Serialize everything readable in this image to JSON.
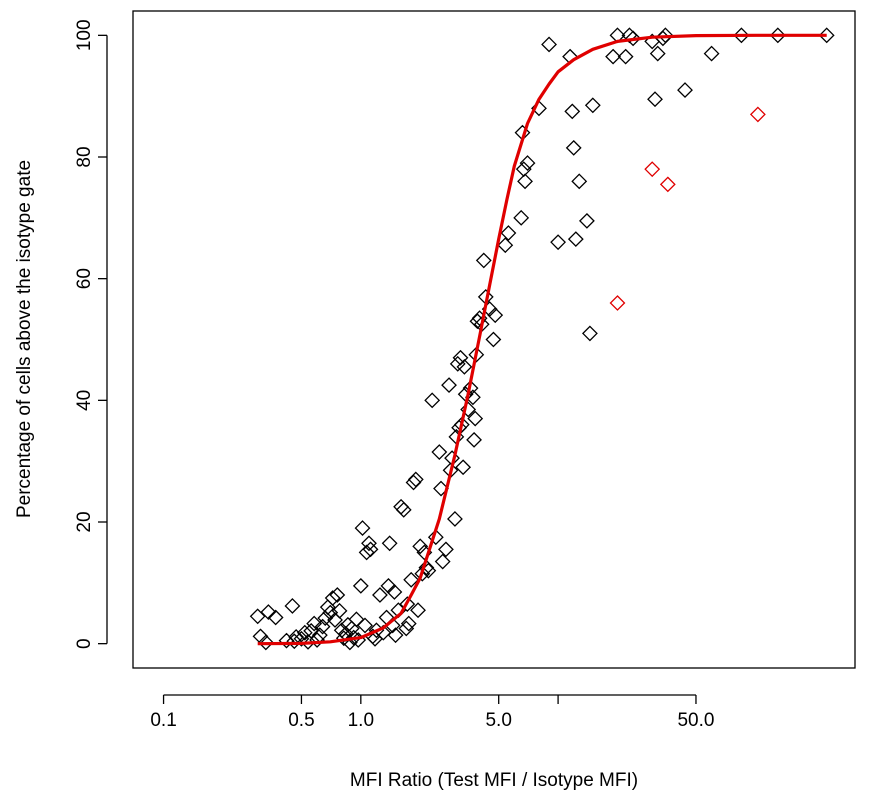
{
  "chart_data": {
    "type": "scatter",
    "title": "",
    "xlabel": "MFI Ratio (Test MFI / Isotype MFI)",
    "ylabel": "Percentage of cells above the isotype gate",
    "x_scale": "log",
    "xlim": [
      0.07,
      320
    ],
    "ylim": [
      -4,
      104
    ],
    "x_ticks": [
      0.1,
      0.5,
      1.0,
      5.0,
      10,
      50.0
    ],
    "x_tick_labels": [
      "0.1",
      "0.5",
      "1.0",
      "5.0",
      "",
      "50.0"
    ],
    "y_ticks": [
      0,
      20,
      40,
      60,
      80,
      100
    ],
    "y_tick_labels": [
      "0",
      "20",
      "40",
      "60",
      "80",
      "100"
    ],
    "marker": "diamond",
    "colors": {
      "points": "#000000",
      "outliers": "#e00000",
      "fit": "#e00000",
      "axis": "#000000"
    },
    "series": [
      {
        "role": "points",
        "points": [
          [
            0.3,
            4.5
          ],
          [
            0.31,
            1.2
          ],
          [
            0.33,
            0.2
          ],
          [
            0.34,
            5.2
          ],
          [
            0.37,
            4.3
          ],
          [
            0.45,
            6.2
          ],
          [
            0.42,
            0.5
          ],
          [
            0.46,
            0.4
          ],
          [
            0.47,
            1.1
          ],
          [
            0.5,
            0.8
          ],
          [
            0.52,
            1.8
          ],
          [
            0.54,
            0.3
          ],
          [
            0.56,
            2.1
          ],
          [
            0.58,
            3.3
          ],
          [
            0.6,
            0.6
          ],
          [
            0.62,
            1.4
          ],
          [
            0.64,
            2.8
          ],
          [
            0.66,
            4.2
          ],
          [
            0.68,
            6.0
          ],
          [
            0.7,
            5.1
          ],
          [
            0.72,
            7.5
          ],
          [
            0.74,
            3.9
          ],
          [
            0.76,
            8.0
          ],
          [
            0.78,
            5.4
          ],
          [
            0.8,
            2.2
          ],
          [
            0.82,
            0.9
          ],
          [
            0.84,
            1.6
          ],
          [
            0.86,
            3.1
          ],
          [
            0.88,
            0.2
          ],
          [
            0.9,
            2.5
          ],
          [
            0.92,
            1.0
          ],
          [
            0.95,
            4.0
          ],
          [
            0.97,
            0.6
          ],
          [
            1.0,
            9.5
          ],
          [
            1.02,
            19.0
          ],
          [
            1.05,
            3.0
          ],
          [
            1.07,
            15.0
          ],
          [
            1.1,
            16.5
          ],
          [
            1.12,
            15.5
          ],
          [
            1.15,
            1.2
          ],
          [
            1.18,
            0.8
          ],
          [
            1.2,
            2.2
          ],
          [
            1.25,
            8.0
          ],
          [
            1.3,
            1.8
          ],
          [
            1.35,
            4.3
          ],
          [
            1.38,
            9.5
          ],
          [
            1.4,
            16.5
          ],
          [
            1.45,
            3.0
          ],
          [
            1.48,
            8.5
          ],
          [
            1.5,
            1.4
          ],
          [
            1.55,
            5.5
          ],
          [
            1.6,
            22.5
          ],
          [
            1.65,
            22.0
          ],
          [
            1.7,
            2.5
          ],
          [
            1.72,
            6.5
          ],
          [
            1.75,
            3.3
          ],
          [
            1.8,
            10.5
          ],
          [
            1.85,
            26.5
          ],
          [
            1.9,
            27.0
          ],
          [
            1.95,
            5.5
          ],
          [
            2.0,
            16.0
          ],
          [
            2.05,
            11.5
          ],
          [
            2.1,
            15.0
          ],
          [
            2.15,
            12.5
          ],
          [
            2.2,
            12.0
          ],
          [
            2.3,
            40.0
          ],
          [
            2.4,
            17.5
          ],
          [
            2.5,
            31.5
          ],
          [
            2.55,
            25.5
          ],
          [
            2.6,
            13.5
          ],
          [
            2.7,
            15.5
          ],
          [
            2.8,
            42.5
          ],
          [
            2.85,
            28.5
          ],
          [
            2.9,
            30.5
          ],
          [
            3.0,
            20.5
          ],
          [
            3.05,
            34.0
          ],
          [
            3.1,
            46.0
          ],
          [
            3.15,
            35.5
          ],
          [
            3.2,
            47.0
          ],
          [
            3.25,
            36.0
          ],
          [
            3.3,
            29.0
          ],
          [
            3.35,
            45.5
          ],
          [
            3.4,
            41.0
          ],
          [
            3.5,
            38.5
          ],
          [
            3.6,
            42.0
          ],
          [
            3.7,
            40.5
          ],
          [
            3.75,
            33.5
          ],
          [
            3.8,
            37.0
          ],
          [
            3.85,
            47.5
          ],
          [
            3.9,
            53.0
          ],
          [
            4.0,
            53.5
          ],
          [
            4.1,
            52.5
          ],
          [
            4.2,
            63.0
          ],
          [
            4.3,
            57.0
          ],
          [
            4.5,
            55.0
          ],
          [
            4.7,
            50.0
          ],
          [
            4.8,
            54.0
          ],
          [
            5.4,
            65.5
          ],
          [
            5.6,
            67.5
          ],
          [
            6.5,
            70.0
          ],
          [
            6.6,
            84.0
          ],
          [
            6.7,
            78.0
          ],
          [
            6.8,
            76.0
          ],
          [
            7.0,
            79.0
          ],
          [
            8.0,
            88.0
          ],
          [
            9.0,
            98.5
          ],
          [
            10.0,
            66.0
          ],
          [
            11.5,
            96.5
          ],
          [
            11.8,
            87.5
          ],
          [
            12.0,
            81.5
          ],
          [
            12.3,
            66.5
          ],
          [
            12.8,
            76.0
          ],
          [
            14.0,
            69.5
          ],
          [
            14.5,
            51.0
          ],
          [
            15.0,
            88.5
          ],
          [
            19.0,
            96.5
          ],
          [
            20.0,
            100.0
          ],
          [
            22.0,
            96.5
          ],
          [
            23.0,
            100.0
          ],
          [
            24.0,
            99.5
          ],
          [
            30.0,
            99.0
          ],
          [
            31.0,
            89.5
          ],
          [
            32.0,
            97.0
          ],
          [
            34.0,
            99.5
          ],
          [
            35.0,
            100.0
          ],
          [
            44.0,
            91.0
          ],
          [
            60.0,
            97.0
          ],
          [
            85.0,
            100.0
          ],
          [
            130.0,
            100.0
          ],
          [
            230.0,
            100.0
          ]
        ]
      },
      {
        "role": "outliers",
        "points": [
          [
            20.0,
            56.0
          ],
          [
            30.0,
            78.0
          ],
          [
            36.0,
            75.5
          ],
          [
            103.0,
            87.0
          ]
        ]
      },
      {
        "role": "fit",
        "type": "line",
        "points": [
          [
            0.3,
            0.0
          ],
          [
            0.5,
            0.05
          ],
          [
            0.7,
            0.3
          ],
          [
            1.0,
            1.0
          ],
          [
            1.3,
            2.6
          ],
          [
            1.6,
            5.0
          ],
          [
            1.8,
            8.0
          ],
          [
            2.0,
            10.8
          ],
          [
            2.5,
            20.5
          ],
          [
            3.0,
            31.0
          ],
          [
            3.5,
            41.0
          ],
          [
            4.0,
            50.5
          ],
          [
            4.5,
            59.0
          ],
          [
            5.0,
            66.5
          ],
          [
            5.5,
            73.0
          ],
          [
            6.0,
            78.5
          ],
          [
            7.0,
            85.5
          ],
          [
            8.0,
            89.5
          ],
          [
            9.0,
            92.0
          ],
          [
            10.0,
            94.0
          ],
          [
            12.0,
            96.0
          ],
          [
            15.0,
            97.7
          ],
          [
            20.0,
            99.0
          ],
          [
            30.0,
            99.7
          ],
          [
            50.0,
            99.95
          ],
          [
            100.0,
            100.0
          ],
          [
            230.0,
            100.0
          ]
        ]
      }
    ]
  }
}
